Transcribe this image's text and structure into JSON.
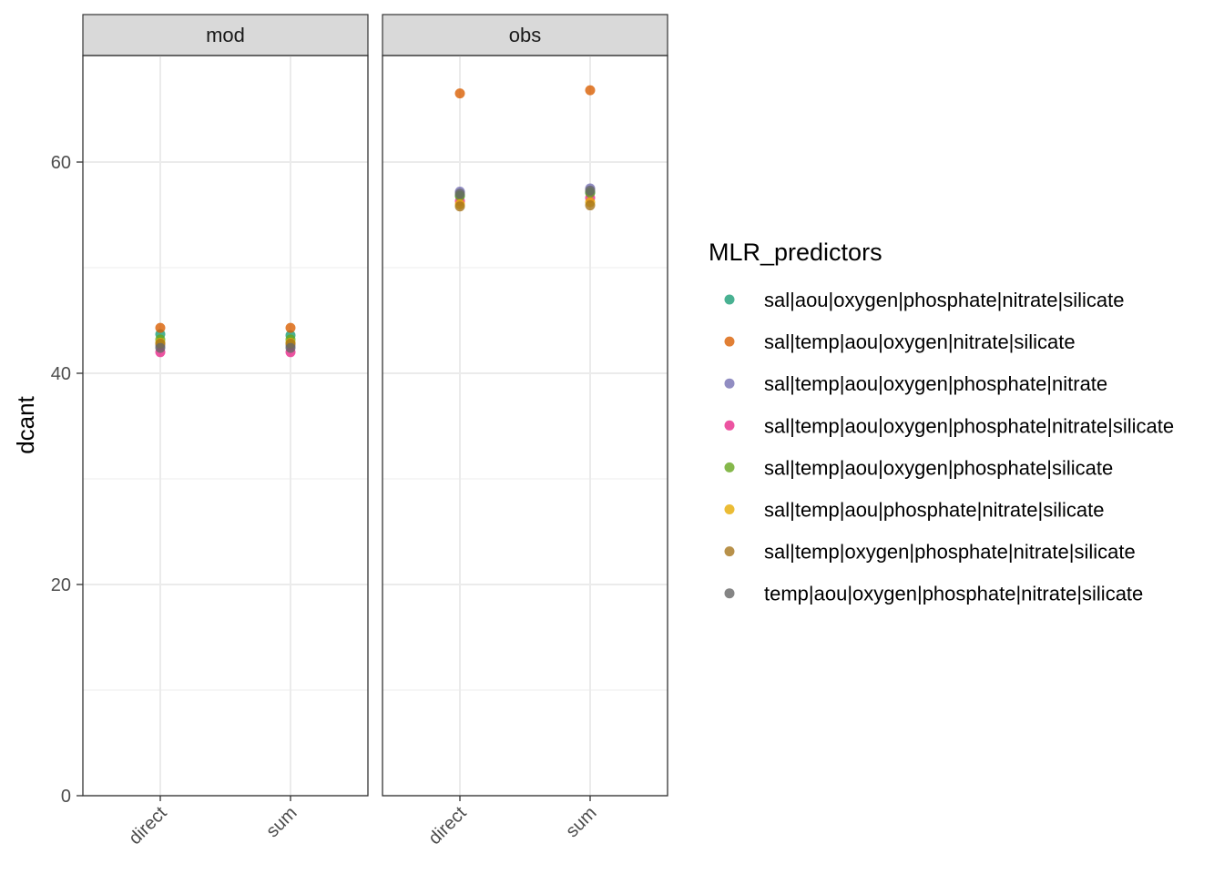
{
  "chart_data": {
    "type": "scatter",
    "ylabel": "dcant",
    "xlabel": "",
    "ylim": [
      0,
      70
    ],
    "yticks": [
      0,
      20,
      40,
      60
    ],
    "categories": [
      "direct",
      "sum"
    ],
    "facets": [
      "mod",
      "obs"
    ],
    "legend": {
      "title": "MLR_predictors",
      "placement": "right"
    },
    "series": [
      {
        "name": "sal|aou|oxygen|phosphate|nitrate|silicate",
        "color": "#1B9E77",
        "values": {
          "mod": [
            43.7,
            43.6
          ],
          "obs": [
            56.8,
            57.1
          ]
        }
      },
      {
        "name": "sal|temp|aou|oxygen|nitrate|silicate",
        "color": "#D95F02",
        "values": {
          "mod": [
            44.3,
            44.3
          ],
          "obs": [
            66.5,
            66.8
          ]
        }
      },
      {
        "name": "sal|temp|aou|oxygen|phosphate|nitrate",
        "color": "#7570B3",
        "values": {
          "mod": [
            42.6,
            42.6
          ],
          "obs": [
            57.2,
            57.5
          ]
        }
      },
      {
        "name": "sal|temp|aou|oxygen|phosphate|nitrate|silicate",
        "color": "#E7298A",
        "values": {
          "mod": [
            42.0,
            42.0
          ],
          "obs": [
            56.3,
            56.6
          ]
        }
      },
      {
        "name": "sal|temp|aou|oxygen|phosphate|silicate",
        "color": "#66A61E",
        "values": {
          "mod": [
            43.2,
            43.2
          ],
          "obs": [
            56.8,
            57.1
          ]
        }
      },
      {
        "name": "sal|temp|aou|phosphate|nitrate|silicate",
        "color": "#E6AB02",
        "values": {
          "mod": [
            42.9,
            42.9
          ],
          "obs": [
            56.0,
            56.2
          ]
        }
      },
      {
        "name": "sal|temp|oxygen|phosphate|nitrate|silicate",
        "color": "#A6761D",
        "values": {
          "mod": [
            42.8,
            42.8
          ],
          "obs": [
            55.8,
            55.9
          ]
        }
      },
      {
        "name": "temp|aou|oxygen|phosphate|nitrate|silicate",
        "color": "#666666",
        "values": {
          "mod": [
            42.4,
            42.4
          ],
          "obs": [
            57.0,
            57.3
          ]
        }
      }
    ]
  }
}
